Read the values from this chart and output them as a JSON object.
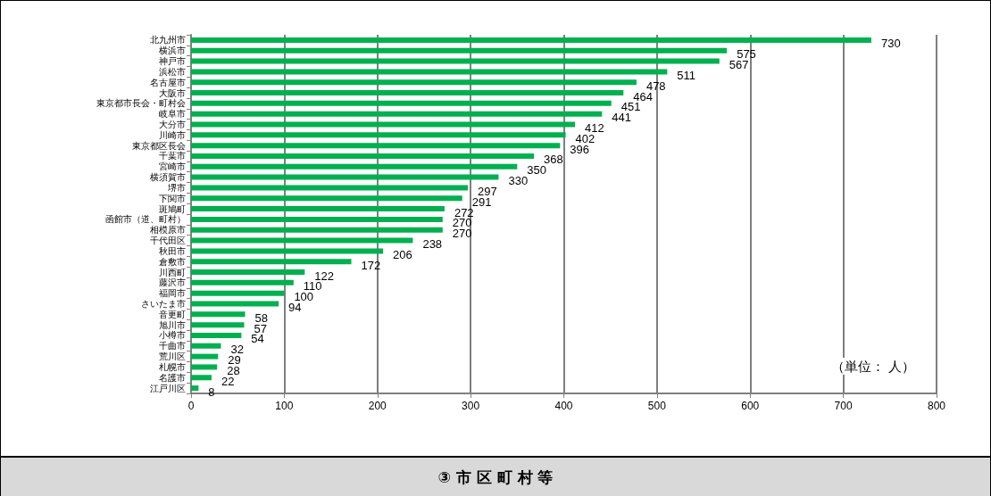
{
  "chart_data": {
    "type": "bar",
    "orientation": "horizontal",
    "title": "③ 市 区 町 村 等",
    "categories": [
      "北九州市",
      "横浜市",
      "神戸市",
      "浜松市",
      "名古屋市",
      "大阪市",
      "東京都市長会・町村会",
      "岐阜市",
      "大分市",
      "川崎市",
      "東京都区長会",
      "千葉市",
      "宮崎市",
      "横須賀市",
      "堺市",
      "下関市",
      "斑鳩町",
      "函館市（道、町村）",
      "相模原市",
      "千代田区",
      "秋田市",
      "倉敷市",
      "川西町",
      "藤沢市",
      "福岡市",
      "さいたま市",
      "音更町",
      "旭川市",
      "小樽市",
      "千曲市",
      "荒川区",
      "札幌市",
      "名護市",
      "江戸川区"
    ],
    "values": [
      730,
      575,
      567,
      511,
      478,
      464,
      451,
      441,
      412,
      402,
      396,
      368,
      350,
      330,
      297,
      291,
      272,
      270,
      270,
      238,
      206,
      172,
      122,
      110,
      100,
      94,
      58,
      57,
      54,
      32,
      29,
      28,
      22,
      8
    ],
    "color": "#00b050",
    "xlim": [
      0,
      800
    ],
    "xticks": [
      0,
      100,
      200,
      300,
      400,
      500,
      600,
      700,
      800
    ],
    "grid": "x",
    "data_labels": true,
    "annotations": [
      "（単位： 人）"
    ]
  }
}
